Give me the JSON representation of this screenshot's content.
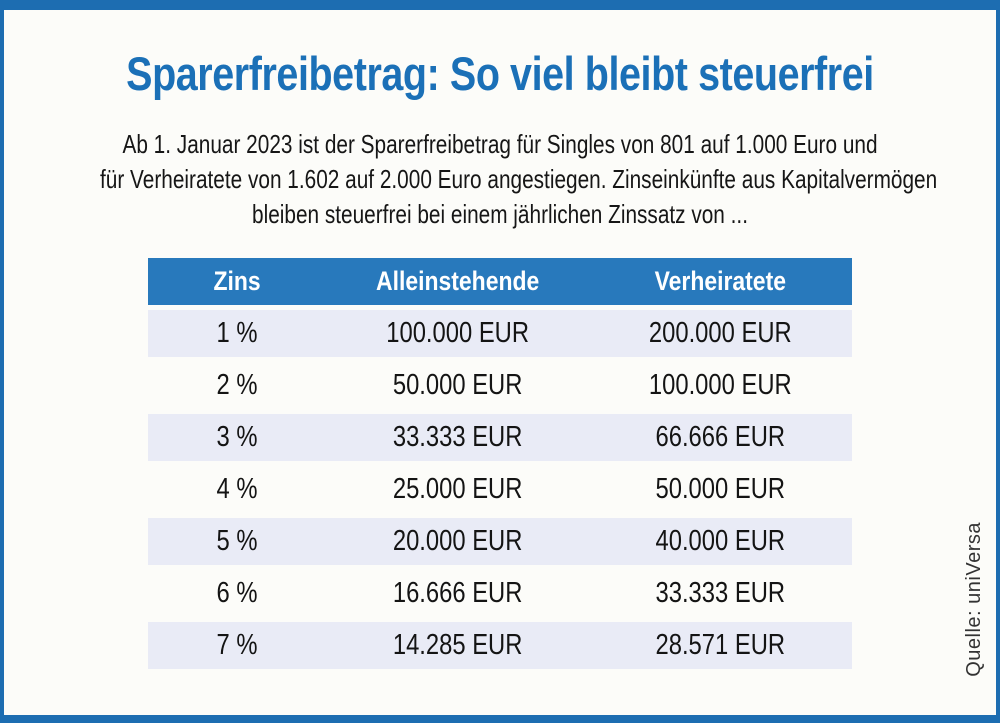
{
  "colors": {
    "frame_blue": "#1d6db1",
    "title_blue": "#1b70b7",
    "table_header_bg": "#2879bc",
    "table_row_alt_bg": "#e9ebf6"
  },
  "header": {
    "title": "Sparerfreibetrag: So viel bleibt steuerfrei"
  },
  "intro": {
    "lines": [
      "Ab 1. Januar 2023 ist der Sparerfreibetrag für Singles von 801 auf 1.000 Euro und",
      "für Verheiratete von 1.602 auf 2.000 Euro angestiegen. Zinseinkünfte aus Kapitalvermögen",
      "bleiben steuerfrei bei einem jährlichen Zinssatz von ..."
    ]
  },
  "table": {
    "columns": [
      "Zins",
      "Alleinstehende",
      "Verheiratete"
    ],
    "rows": [
      [
        "1 %",
        "100.000 EUR",
        "200.000 EUR"
      ],
      [
        "2 %",
        "50.000 EUR",
        "100.000 EUR"
      ],
      [
        "3 %",
        "33.333 EUR",
        "66.666 EUR"
      ],
      [
        "4 %",
        "25.000 EUR",
        "50.000 EUR"
      ],
      [
        "5 %",
        "20.000 EUR",
        "40.000 EUR"
      ],
      [
        "6 %",
        "16.666 EUR",
        "33.333 EUR"
      ],
      [
        "7 %",
        "14.285 EUR",
        "28.571 EUR"
      ]
    ]
  },
  "source": {
    "label": "Quelle: uniVersa"
  },
  "chart_data": {
    "type": "table",
    "title": "Sparerfreibetrag: So viel bleibt steuerfrei",
    "subtitle": "Ab 1. Januar 2023 ist der Sparerfreibetrag für Singles von 801 auf 1.000 Euro und für Verheiratete von 1.602 auf 2.000 Euro angestiegen. Zinseinkünfte aus Kapitalvermögen bleiben steuerfrei bei einem jährlichen Zinssatz von ...",
    "columns": [
      "Zins",
      "Alleinstehende",
      "Verheiratete"
    ],
    "rows": [
      [
        "1 %",
        "100.000 EUR",
        "200.000 EUR"
      ],
      [
        "2 %",
        "50.000 EUR",
        "100.000 EUR"
      ],
      [
        "3 %",
        "33.333 EUR",
        "66.666 EUR"
      ],
      [
        "4 %",
        "25.000 EUR",
        "50.000 EUR"
      ],
      [
        "5 %",
        "20.000 EUR",
        "40.000 EUR"
      ],
      [
        "6 %",
        "16.666 EUR",
        "33.333 EUR"
      ],
      [
        "7 %",
        "14.285 EUR",
        "28.571 EUR"
      ]
    ],
    "source": "Quelle: uniVersa"
  }
}
